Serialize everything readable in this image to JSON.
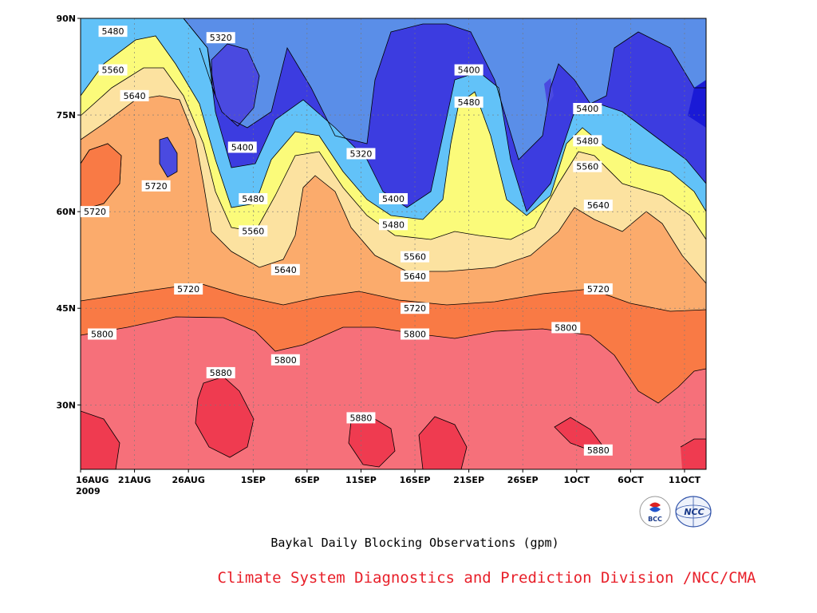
{
  "chart_data": {
    "type": "contour",
    "title": "Baykal Daily Blocking Observations (gpm)",
    "credit": "Climate System Diagnostics and Prediction Division /NCC/CMA",
    "x_ticks": [
      "16AUG",
      "21AUG",
      "26AUG",
      "1SEP",
      "6SEP",
      "11SEP",
      "16SEP",
      "21SEP",
      "26SEP",
      "1OCT",
      "6OCT",
      "11OCT"
    ],
    "x_year": "2009",
    "y_ticks": [
      "30N",
      "45N",
      "60N",
      "75N",
      "90N"
    ],
    "y_range": [
      20,
      90
    ],
    "grid": true,
    "levels": [
      5320,
      5400,
      5480,
      5560,
      5640,
      5720,
      5800,
      5880
    ],
    "level_colors": [
      "#1a1ad6",
      "#4a4ae0",
      "#5f96ea",
      "#62c2f8",
      "#fbfb7a",
      "#fce2a0",
      "#fbab6c",
      "#f97a45",
      "#f6707a",
      "#ef3b50"
    ],
    "contour_labels": [
      {
        "value": "5480",
        "date": "19AUG",
        "lat": 88
      },
      {
        "value": "5560",
        "date": "19AUG",
        "lat": 82
      },
      {
        "value": "5640",
        "date": "21AUG",
        "lat": 78
      },
      {
        "value": "5720",
        "date": "23AUG",
        "lat": 64
      },
      {
        "value": "5720",
        "date": "16AUG",
        "lat": 60
      },
      {
        "value": "5320",
        "date": "29AUG",
        "lat": 87
      },
      {
        "value": "5400",
        "date": "31AUG",
        "lat": 70
      },
      {
        "value": "5480",
        "date": "1SEP",
        "lat": 62
      },
      {
        "value": "5560",
        "date": "1SEP",
        "lat": 57
      },
      {
        "value": "5640",
        "date": "4SEP",
        "lat": 51
      },
      {
        "value": "5720",
        "date": "26AUG",
        "lat": 48
      },
      {
        "value": "5800",
        "date": "18AUG",
        "lat": 41
      },
      {
        "value": "5800",
        "date": "4SEP",
        "lat": 37
      },
      {
        "value": "5880",
        "date": "29AUG",
        "lat": 35
      },
      {
        "value": "5320",
        "date": "11SEP",
        "lat": 69
      },
      {
        "value": "5400",
        "date": "14SEP",
        "lat": 62
      },
      {
        "value": "5480",
        "date": "14SEP",
        "lat": 58
      },
      {
        "value": "5560",
        "date": "16SEP",
        "lat": 53
      },
      {
        "value": "5640",
        "date": "16SEP",
        "lat": 50
      },
      {
        "value": "5720",
        "date": "16SEP",
        "lat": 45
      },
      {
        "value": "5800",
        "date": "16SEP",
        "lat": 41
      },
      {
        "value": "5880",
        "date": "11SEP",
        "lat": 28
      },
      {
        "value": "5400",
        "date": "21SEP",
        "lat": 82
      },
      {
        "value": "5480",
        "date": "21SEP",
        "lat": 77
      },
      {
        "value": "5400",
        "date": "2OCT",
        "lat": 76
      },
      {
        "value": "5480",
        "date": "2OCT",
        "lat": 71
      },
      {
        "value": "5560",
        "date": "2OCT",
        "lat": 67
      },
      {
        "value": "5640",
        "date": "3OCT",
        "lat": 61
      },
      {
        "value": "5720",
        "date": "3OCT",
        "lat": 48
      },
      {
        "value": "5800",
        "date": "30SEP",
        "lat": 42
      },
      {
        "value": "5880",
        "date": "3OCT",
        "lat": 23
      }
    ]
  },
  "logos": {
    "left": "BCC",
    "right": "NCC"
  }
}
